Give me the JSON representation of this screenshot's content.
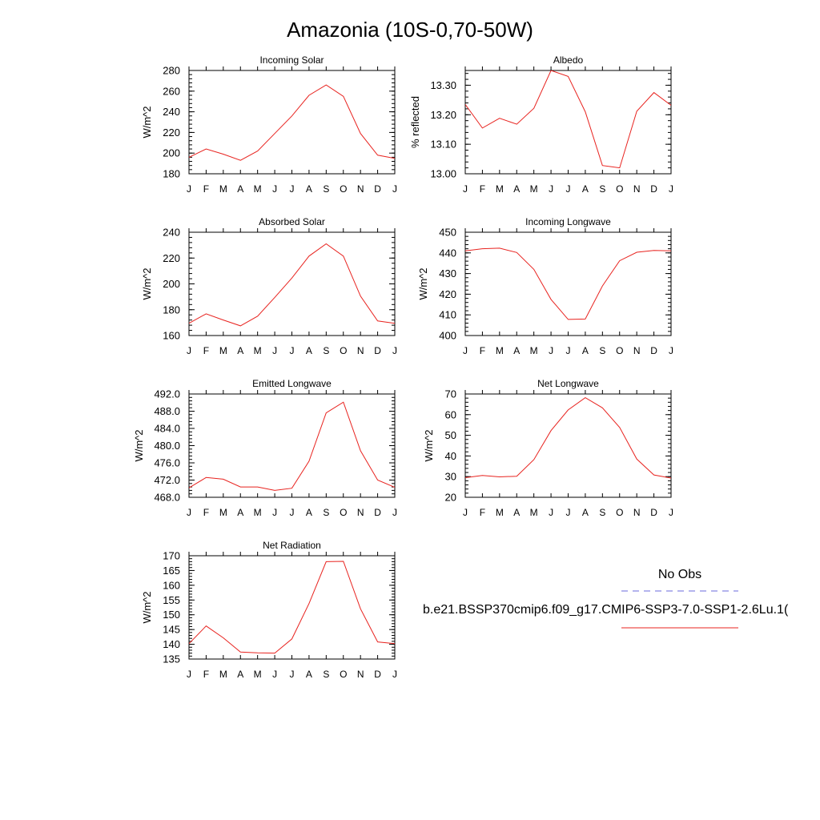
{
  "figure": {
    "title": "Amazonia (10S-0,70-50W)",
    "series_color": "#e8231f",
    "obs_color": "#6a6add"
  },
  "legend": {
    "obs_label": "No Obs",
    "model_label": "b.e21.BSSP370cmip6.f09_g17.CMIP6-SSP3-7.0-SSP1-2.6Lu.1("
  },
  "chart_data": [
    {
      "type": "line",
      "title": "Incoming Solar",
      "ylabel": "W/m^2",
      "categories": [
        "J",
        "F",
        "M",
        "A",
        "M",
        "J",
        "J",
        "A",
        "S",
        "O",
        "N",
        "D",
        "J"
      ],
      "ylim": [
        180,
        280
      ],
      "yticks": [
        180,
        200,
        220,
        240,
        260,
        280
      ],
      "ytick_labels": [
        "180",
        "200",
        "220",
        "240",
        "260",
        "280"
      ],
      "series": [
        {
          "values": [
            196,
            204,
            199,
            193,
            202,
            219,
            236,
            256,
            266,
            255,
            219,
            198,
            195
          ]
        }
      ]
    },
    {
      "type": "line",
      "title": "Albedo",
      "ylabel": "% reflected",
      "categories": [
        "J",
        "F",
        "M",
        "A",
        "M",
        "J",
        "J",
        "A",
        "S",
        "O",
        "N",
        "D",
        "J"
      ],
      "ylim": [
        13.0,
        13.35
      ],
      "yticks": [
        13.0,
        13.1,
        13.2,
        13.3
      ],
      "ytick_labels": [
        "13.00",
        "13.10",
        "13.20",
        "13.30"
      ],
      "series": [
        {
          "values": [
            13.235,
            13.155,
            13.188,
            13.168,
            13.222,
            13.35,
            13.33,
            13.21,
            13.028,
            13.02,
            13.212,
            13.275,
            13.232
          ]
        }
      ]
    },
    {
      "type": "line",
      "title": "Absorbed Solar",
      "ylabel": "W/m^2",
      "categories": [
        "J",
        "F",
        "M",
        "A",
        "M",
        "J",
        "J",
        "A",
        "S",
        "O",
        "N",
        "D",
        "J"
      ],
      "ylim": [
        160,
        240
      ],
      "yticks": [
        160,
        180,
        200,
        220,
        240
      ],
      "ytick_labels": [
        "160",
        "180",
        "200",
        "220",
        "240"
      ],
      "series": [
        {
          "values": [
            169.5,
            176.8,
            172,
            167.5,
            175,
            189.5,
            204.5,
            221.5,
            231,
            221.5,
            190.5,
            171.3,
            169.5
          ]
        }
      ]
    },
    {
      "type": "line",
      "title": "Incoming Longwave",
      "ylabel": "W/m^2",
      "categories": [
        "J",
        "F",
        "M",
        "A",
        "M",
        "J",
        "J",
        "A",
        "S",
        "O",
        "N",
        "D",
        "J"
      ],
      "ylim": [
        400,
        450
      ],
      "yticks": [
        400,
        410,
        420,
        430,
        440,
        450
      ],
      "ytick_labels": [
        "400",
        "410",
        "420",
        "430",
        "440",
        "450"
      ],
      "series": [
        {
          "values": [
            441,
            442,
            442.3,
            440.2,
            432,
            417.5,
            407.8,
            408,
            424,
            436.2,
            440.3,
            441.2,
            441
          ]
        }
      ]
    },
    {
      "type": "line",
      "title": "Emitted Longwave",
      "ylabel": "W/m^2",
      "categories": [
        "J",
        "F",
        "M",
        "A",
        "M",
        "J",
        "J",
        "A",
        "S",
        "O",
        "N",
        "D",
        "J"
      ],
      "ylim": [
        468,
        492
      ],
      "yticks": [
        468,
        472,
        476,
        480,
        484,
        488,
        492
      ],
      "ytick_labels": [
        "468.0",
        "472.0",
        "476.0",
        "480.0",
        "484.0",
        "488.0",
        "492.0"
      ],
      "series": [
        {
          "values": [
            470.2,
            472.6,
            472.2,
            470.4,
            470.4,
            469.6,
            470.1,
            476.4,
            487.6,
            490.1,
            478.8,
            472,
            470.3
          ]
        }
      ]
    },
    {
      "type": "line",
      "title": "Net Longwave",
      "ylabel": "W/m^2",
      "categories": [
        "J",
        "F",
        "M",
        "A",
        "M",
        "J",
        "J",
        "A",
        "S",
        "O",
        "N",
        "D",
        "J"
      ],
      "ylim": [
        20,
        70
      ],
      "yticks": [
        20,
        30,
        40,
        50,
        60,
        70
      ],
      "ytick_labels": [
        "20",
        "30",
        "40",
        "50",
        "60",
        "70"
      ],
      "series": [
        {
          "values": [
            29.5,
            30.6,
            29.9,
            30.2,
            38.2,
            52.3,
            62.3,
            68.2,
            63.3,
            53.8,
            38.5,
            30.8,
            29.3
          ]
        }
      ]
    },
    {
      "type": "line",
      "title": "Net Radiation",
      "ylabel": "W/m^2",
      "categories": [
        "J",
        "F",
        "M",
        "A",
        "M",
        "J",
        "J",
        "A",
        "S",
        "O",
        "N",
        "D",
        "J"
      ],
      "ylim": [
        135,
        170
      ],
      "yticks": [
        135,
        140,
        145,
        150,
        155,
        160,
        165,
        170
      ],
      "ytick_labels": [
        "135",
        "140",
        "145",
        "150",
        "155",
        "160",
        "165",
        "170"
      ],
      "series": [
        {
          "values": [
            140.2,
            146.2,
            142.2,
            137.4,
            137.1,
            137,
            141.8,
            153.8,
            168,
            168.1,
            152,
            140.8,
            140.2
          ]
        }
      ]
    }
  ]
}
